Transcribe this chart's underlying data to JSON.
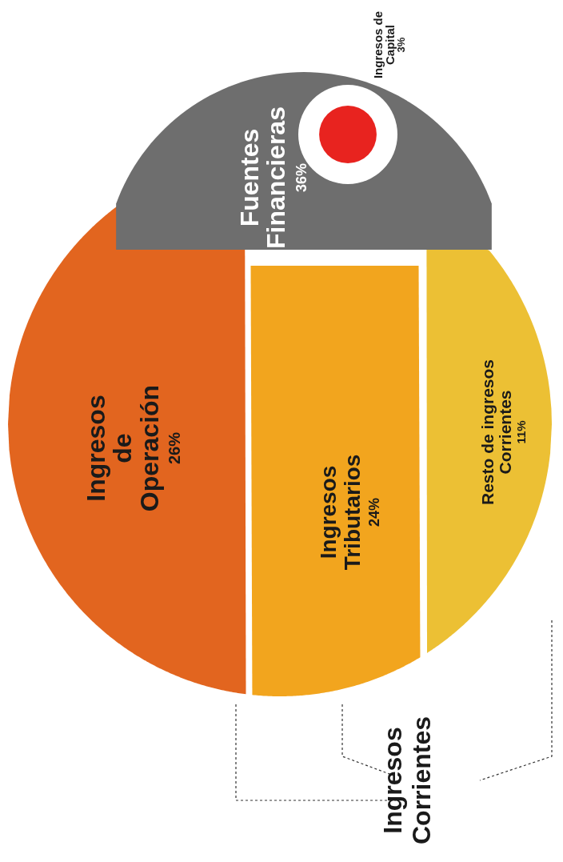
{
  "chart_data": {
    "type": "other",
    "categories": [
      "Ingresos de Operación",
      "Ingresos Tributarios",
      "Resto de ingresos Corrientes",
      "Fuentes Financieras",
      "Ingresos de Capital"
    ],
    "values": [
      26,
      24,
      11,
      36,
      3
    ],
    "value_labels": [
      "26%",
      "24%",
      "11%",
      "36%",
      "3%"
    ],
    "colors": [
      "#e2651f",
      "#f2a51e",
      "#ecc034",
      "#6e6e6e",
      "#e8231f"
    ],
    "annotations": [
      "Ingresos Corrientes"
    ]
  }
}
